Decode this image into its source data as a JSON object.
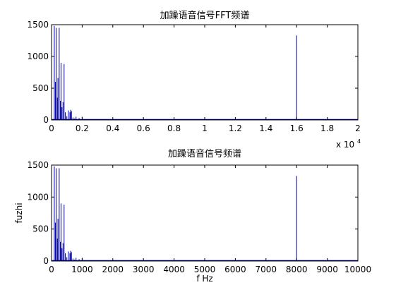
{
  "chart_data": [
    {
      "type": "bar",
      "title": "加躁语音信号FFT频谱",
      "xlabel": "",
      "ylabel": "",
      "x_scale_note": "x 10",
      "x_scale_exp": "4",
      "xlim": [
        0,
        2
      ],
      "ylim": [
        0,
        1500
      ],
      "xticks": [
        "0",
        "0.2",
        "0.4",
        "0.6",
        "0.8",
        "1",
        "1.2",
        "1.4",
        "1.6",
        "1.8",
        "2"
      ],
      "yticks": [
        "0",
        "500",
        "1000",
        "1500"
      ],
      "grid": false,
      "line_color": "#0000aa",
      "x": [
        0.018,
        0.025,
        0.03,
        0.038,
        0.042,
        0.05,
        0.058,
        0.062,
        0.068,
        0.075,
        0.082,
        0.09,
        0.1,
        0.11,
        0.12,
        0.125,
        0.13,
        0.14,
        0.15,
        0.16,
        0.18,
        0.2,
        1.6
      ],
      "values": [
        1480,
        600,
        1450,
        350,
        660,
        1450,
        300,
        900,
        200,
        280,
        880,
        120,
        60,
        150,
        120,
        160,
        140,
        40,
        20,
        50,
        30,
        50,
        1330
      ]
    },
    {
      "type": "bar",
      "title": "加躁语音信号频谱",
      "xlabel": "f Hz",
      "ylabel": "fuzhi",
      "xlim": [
        0,
        10000
      ],
      "ylim": [
        0,
        1500
      ],
      "xticks": [
        "0",
        "1000",
        "2000",
        "3000",
        "4000",
        "5000",
        "6000",
        "7000",
        "8000",
        "9000",
        "10000"
      ],
      "yticks": [
        "0",
        "500",
        "1000",
        "1500"
      ],
      "grid": false,
      "line_color": "#0000aa",
      "x": [
        90,
        125,
        150,
        190,
        210,
        250,
        290,
        310,
        340,
        375,
        410,
        450,
        500,
        550,
        600,
        625,
        650,
        700,
        750,
        800,
        900,
        1000,
        8000
      ],
      "values": [
        1480,
        600,
        1450,
        350,
        660,
        1450,
        300,
        900,
        200,
        280,
        880,
        120,
        60,
        150,
        120,
        160,
        140,
        40,
        20,
        50,
        30,
        50,
        1330
      ]
    }
  ]
}
